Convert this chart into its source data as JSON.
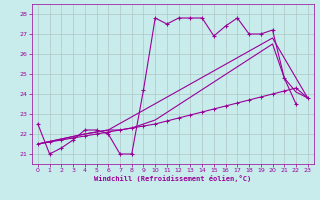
{
  "background_color": "#c8ecec",
  "line_color": "#990099",
  "grid_color": "#aabbbb",
  "xlabel": "Windchill (Refroidissement éolien,°C)",
  "xlim": [
    -0.5,
    23.5
  ],
  "ylim": [
    20.5,
    28.5
  ],
  "yticks": [
    21,
    22,
    23,
    24,
    25,
    26,
    27,
    28
  ],
  "xticks": [
    0,
    1,
    2,
    3,
    4,
    5,
    6,
    7,
    8,
    9,
    10,
    11,
    12,
    13,
    14,
    15,
    16,
    17,
    18,
    19,
    20,
    21,
    22,
    23
  ],
  "s1_x": [
    0,
    1,
    2,
    3,
    4,
    5,
    6,
    7,
    8,
    9,
    10,
    11,
    12,
    13,
    14,
    15,
    16,
    17,
    18,
    19,
    20,
    21,
    22
  ],
  "s1_y": [
    22.5,
    21.0,
    21.3,
    21.7,
    22.2,
    22.2,
    22.0,
    21.0,
    21.0,
    24.2,
    27.8,
    27.5,
    27.8,
    27.8,
    27.8,
    26.9,
    27.4,
    27.8,
    27.0,
    27.0,
    27.2,
    24.8,
    23.5
  ],
  "s2_x": [
    0,
    1,
    2,
    3,
    4,
    5,
    6,
    7,
    8,
    9,
    10,
    11,
    12,
    13,
    14,
    15,
    16,
    17,
    18,
    19,
    20,
    21,
    22,
    23
  ],
  "s2_y": [
    21.5,
    21.6,
    21.7,
    21.8,
    21.9,
    22.0,
    22.1,
    22.2,
    22.3,
    22.4,
    22.5,
    22.65,
    22.8,
    22.95,
    23.1,
    23.25,
    23.4,
    23.55,
    23.7,
    23.85,
    24.0,
    24.15,
    24.3,
    23.8
  ],
  "s3_x": [
    0,
    4,
    5,
    6,
    7,
    8,
    9,
    10,
    20,
    21,
    22,
    23
  ],
  "s3_y": [
    21.5,
    22.0,
    22.1,
    22.2,
    22.2,
    22.3,
    22.5,
    22.7,
    26.5,
    24.8,
    24.1,
    23.8
  ],
  "s4_x": [
    0,
    4,
    5,
    6,
    20,
    23
  ],
  "s4_y": [
    21.5,
    22.0,
    22.1,
    22.2,
    26.8,
    23.8
  ]
}
